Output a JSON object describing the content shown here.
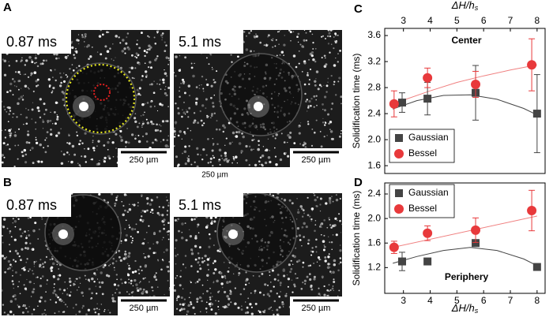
{
  "panels": {
    "letters": [
      "A",
      "B",
      "C",
      "D"
    ],
    "images": [
      {
        "time": "0.87 ms",
        "scale": "250 µm"
      },
      {
        "time": "5.1 ms",
        "scale": "250 µm"
      },
      {
        "time": "0.87 ms",
        "scale": "250 µm"
      },
      {
        "time": "5.1 ms",
        "scale": "250 µm"
      }
    ],
    "stray_scale": "250 µm"
  },
  "chart_data": [
    {
      "type": "scatter",
      "annotation": "Center",
      "y_label": "Solidification time (ms)",
      "x_label": {
        "text": "ΔH/h",
        "subscript": "s"
      },
      "x_axis_position": "top",
      "xlim": [
        2.3,
        8.3
      ],
      "xticks": [
        3,
        4,
        5,
        6,
        7,
        8
      ],
      "ylim": [
        1.48,
        3.71
      ],
      "yticks": [
        {
          "value": 1.6,
          "label": "1.6"
        },
        {
          "value": 2.0,
          "label": "2.0"
        },
        {
          "value": 2.4,
          "label": "2.4"
        },
        {
          "value": 2.8,
          "label": "2.8"
        },
        {
          "value": 3.2,
          "label": "3.2"
        },
        {
          "value": 3.6,
          "label": "3.6"
        }
      ],
      "legend": "lower-left",
      "series": [
        {
          "name": "Gaussian",
          "color": "#444444",
          "marker": "square",
          "x": [
            2.95,
            3.9,
            5.7,
            8.0
          ],
          "values": [
            2.57,
            2.63,
            2.72,
            2.4
          ],
          "errors": [
            0.15,
            0.25,
            0.42,
            0.6
          ]
        },
        {
          "name": "Bessel",
          "color": "#e8393b",
          "marker": "circle",
          "x": [
            2.65,
            3.9,
            5.7,
            7.8
          ],
          "values": [
            2.55,
            2.95,
            2.85,
            3.15
          ],
          "errors": [
            0.2,
            0.15,
            0.2,
            0.4
          ]
        }
      ],
      "fits": [
        {
          "color": "#444444",
          "x": [
            2.6,
            3.5,
            4.5,
            5.5,
            6.5,
            7.5,
            8.0
          ],
          "values": [
            2.47,
            2.6,
            2.68,
            2.69,
            2.62,
            2.48,
            2.38
          ]
        },
        {
          "color": "#f08080",
          "x": [
            2.6,
            4.0,
            5.0,
            6.0,
            7.0,
            8.0
          ],
          "values": [
            2.55,
            2.75,
            2.88,
            2.98,
            3.07,
            3.15
          ]
        }
      ]
    },
    {
      "type": "scatter",
      "annotation": "Periphery",
      "y_label": "Solidification time (ms)",
      "x_label": {
        "text": "ΔH/h",
        "subscript": "s"
      },
      "x_axis_position": "bottom",
      "xlim": [
        2.3,
        8.3
      ],
      "xticks": [
        3,
        4,
        5,
        6,
        7,
        8
      ],
      "ylim": [
        0.78,
        2.58
      ],
      "yticks": [
        1.2,
        1.6,
        {
          "value": 2.0,
          "label": "2.0"
        },
        2.4
      ],
      "legend": "upper-left",
      "series": [
        {
          "name": "Gaussian",
          "color": "#444444",
          "marker": "square",
          "x": [
            2.95,
            3.9,
            5.7,
            8.0
          ],
          "values": [
            1.3,
            1.3,
            1.6,
            1.21
          ],
          "errors": [
            0.15,
            0.05,
            0.03,
            0.02
          ]
        },
        {
          "name": "Bessel",
          "color": "#e8393b",
          "marker": "circle",
          "x": [
            2.65,
            3.9,
            5.7,
            7.8
          ],
          "values": [
            1.53,
            1.76,
            1.81,
            2.13
          ],
          "errors": [
            0.1,
            0.12,
            0.2,
            0.33
          ]
        }
      ],
      "fits": [
        {
          "color": "#444444",
          "x": [
            2.6,
            3.5,
            4.5,
            5.5,
            6.5,
            7.5,
            8.1
          ],
          "values": [
            1.27,
            1.38,
            1.48,
            1.53,
            1.48,
            1.34,
            1.21
          ]
        },
        {
          "color": "#f08080",
          "x": [
            2.6,
            8.0
          ],
          "values": [
            1.53,
            2.04
          ]
        }
      ]
    }
  ]
}
